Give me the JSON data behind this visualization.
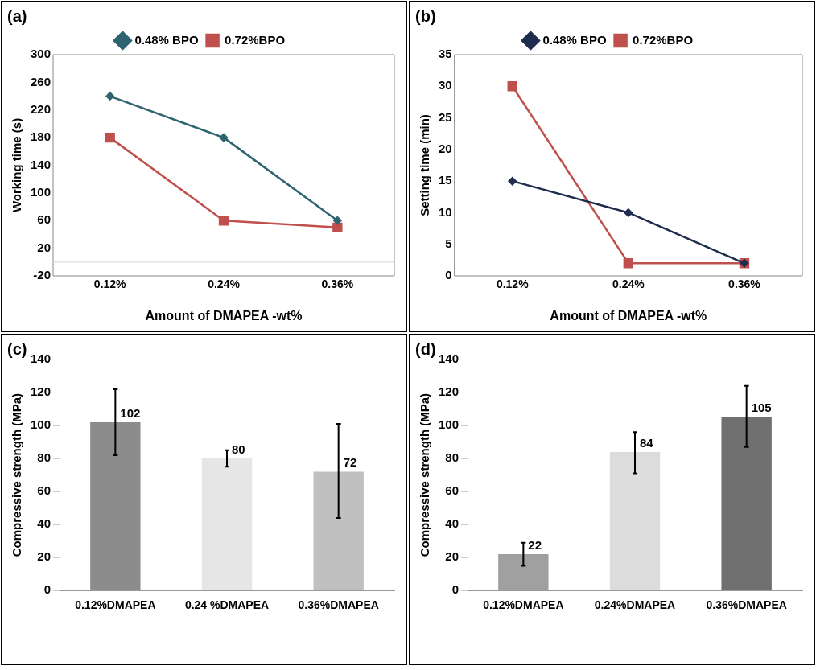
{
  "chart_data": [
    {
      "type": "line",
      "title": "(a)",
      "xlabel": "Amount of DMAPEA -wt%",
      "ylabel": "Working time (s)",
      "categories": [
        "0.12%",
        "0.24%",
        "0.36%"
      ],
      "series": [
        {
          "name": "0.48% BPO",
          "color": "#2e6470",
          "marker": "diamond",
          "values": [
            240,
            180,
            60
          ]
        },
        {
          "name": "0.72%BPO",
          "color": "#c0504d",
          "marker": "square",
          "values": [
            180,
            60,
            50
          ]
        }
      ],
      "ylim": [
        -20,
        300
      ],
      "yticks": [
        -20,
        20,
        60,
        100,
        140,
        180,
        220,
        260,
        300
      ],
      "ref_lines": [
        {
          "axis": "y",
          "value": 0,
          "color": "#d9d9d9"
        }
      ],
      "legend": "top"
    },
    {
      "type": "line",
      "title": "(b)",
      "xlabel": "Amount of DMAPEA -wt%",
      "ylabel": "Setting time (min)",
      "categories": [
        "0.12%",
        "0.24%",
        "0.36%"
      ],
      "series": [
        {
          "name": "0.48% BPO",
          "color": "#1f2d4e",
          "marker": "diamond",
          "values": [
            15,
            10,
            2
          ]
        },
        {
          "name": "0.72%BPO",
          "color": "#c0504d",
          "marker": "square",
          "values": [
            30,
            2,
            2
          ]
        }
      ],
      "ylim": [
        0,
        35
      ],
      "yticks": [
        0,
        5,
        10,
        15,
        20,
        25,
        30,
        35
      ],
      "legend": "top"
    },
    {
      "type": "bar",
      "title": "(c)",
      "ylabel": "Compressive strength (MPa)",
      "categories": [
        "0.12%DMAPEA",
        "0.24 %DMAPEA",
        "0.36%DMAPEA"
      ],
      "values": [
        102,
        80,
        72
      ],
      "colors": [
        "#8c8c8c",
        "#e6e6e6",
        "#c0c0c0"
      ],
      "errors": [
        [
          82,
          122
        ],
        [
          75,
          85
        ],
        [
          44,
          101
        ]
      ],
      "ylim": [
        0,
        140
      ],
      "yticks": [
        0,
        20,
        40,
        60,
        80,
        100,
        120,
        140
      ],
      "data_labels": true
    },
    {
      "type": "bar",
      "title": "(d)",
      "ylabel": "Compressive strength (MPa)",
      "categories": [
        "0.12%DMAPEA",
        "0.24%DMAPEA",
        "0.36%DMAPEA"
      ],
      "values": [
        22,
        84,
        105
      ],
      "colors": [
        "#a0a0a0",
        "#dcdcdc",
        "#707070"
      ],
      "errors": [
        [
          15,
          29
        ],
        [
          71,
          96
        ],
        [
          87,
          124
        ]
      ],
      "ylim": [
        0,
        140
      ],
      "yticks": [
        0,
        20,
        40,
        60,
        80,
        100,
        120,
        140
      ],
      "data_labels": true
    }
  ]
}
